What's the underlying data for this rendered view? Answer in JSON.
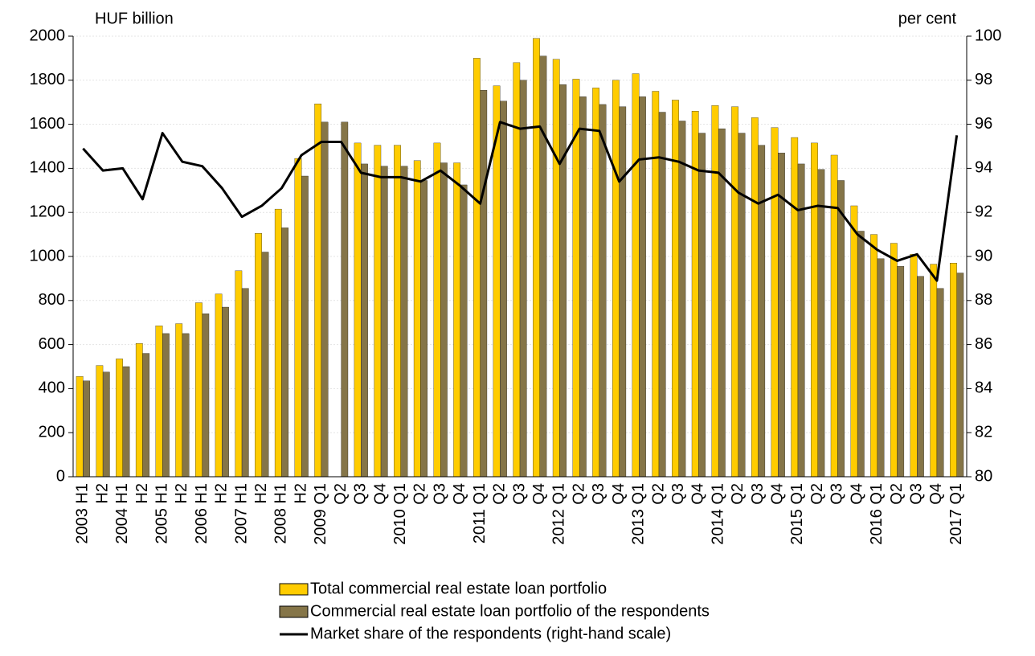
{
  "chart_data": {
    "type": "bar",
    "y_label": "HUF billion",
    "y2_label": "per cent",
    "categories": [
      "2003 H1",
      "H2",
      "2004 H1",
      "H2",
      "2005 H1",
      "H2",
      "2006 H1",
      "H2",
      "2007 H1",
      "H2",
      "2008 H1",
      "H2",
      "2009 Q1",
      "Q2",
      "Q3",
      "Q4",
      "2010 Q1",
      "Q2",
      "Q3",
      "Q4",
      "2011 Q1",
      "Q2",
      "Q3",
      "Q4",
      "2012 Q1",
      "Q2",
      "Q3",
      "Q4",
      "2013 Q1",
      "Q2",
      "Q3",
      "Q4",
      "2014 Q1",
      "Q2",
      "Q3",
      "Q4",
      "2015 Q1",
      "Q2",
      "Q3",
      "Q4",
      "2016 Q1",
      "Q2",
      "Q3",
      "Q4",
      "2017 Q1"
    ],
    "series": [
      {
        "name": "Total commercial real estate loan portfolio",
        "color": "#ffcc00",
        "type": "bar",
        "values": [
          455,
          505,
          535,
          605,
          685,
          695,
          790,
          830,
          935,
          1105,
          1215,
          1445,
          1693,
          null,
          1515,
          1505,
          1505,
          1435,
          1515,
          1425,
          1900,
          1775,
          1880,
          1990,
          1895,
          1805,
          1765,
          1800,
          1830,
          1750,
          1710,
          1660,
          1685,
          1680,
          1630,
          1585,
          1540,
          1515,
          1460,
          1230,
          1100,
          1060,
          1010,
          965,
          970
        ]
      },
      {
        "name": "Commercial real estate loan portfolio of the respondents",
        "color": "#857548",
        "type": "bar",
        "values": [
          435,
          475,
          500,
          560,
          650,
          650,
          740,
          770,
          855,
          1020,
          1130,
          1365,
          1610,
          1610,
          1420,
          1410,
          1410,
          1345,
          1425,
          1325,
          1755,
          1705,
          1800,
          1910,
          1780,
          1725,
          1690,
          1680,
          1725,
          1655,
          1615,
          1560,
          1580,
          1560,
          1505,
          1470,
          1420,
          1395,
          1345,
          1115,
          990,
          955,
          910,
          855,
          925
        ]
      },
      {
        "name": "Market share of the respondents (right-hand scale)",
        "color": "#000000",
        "type": "line",
        "axis": "y2",
        "values": [
          94.9,
          93.9,
          94.0,
          92.6,
          95.6,
          94.3,
          94.1,
          93.1,
          91.8,
          92.3,
          93.1,
          94.6,
          95.2,
          95.2,
          93.8,
          93.6,
          93.6,
          93.4,
          93.9,
          93.2,
          92.4,
          96.1,
          95.8,
          95.9,
          94.2,
          95.8,
          95.7,
          93.4,
          94.4,
          94.5,
          94.3,
          93.9,
          93.8,
          92.9,
          92.4,
          92.8,
          92.1,
          92.3,
          92.2,
          91.0,
          90.3,
          89.8,
          90.1,
          88.9,
          95.5
        ]
      }
    ],
    "ylim": [
      0,
      2000
    ],
    "yticks": [
      0,
      200,
      400,
      600,
      800,
      1000,
      1200,
      1400,
      1600,
      1800,
      2000
    ],
    "y2lim": [
      80,
      100
    ],
    "y2ticks": [
      80,
      82,
      84,
      86,
      88,
      90,
      92,
      94,
      96,
      98,
      100
    ],
    "grid": true,
    "legend": "bottom"
  }
}
